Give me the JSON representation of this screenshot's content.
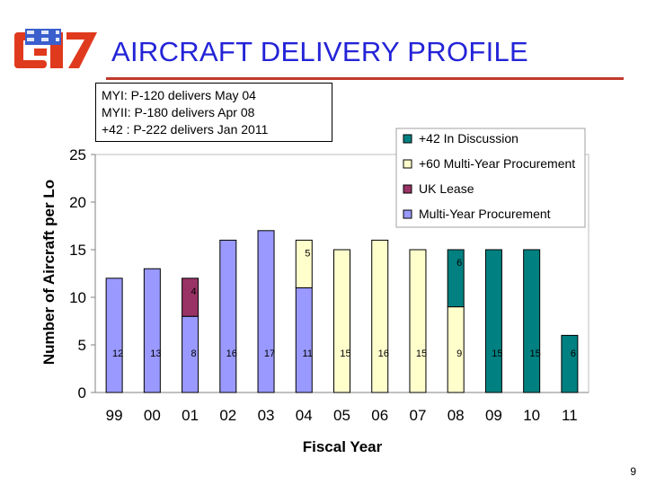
{
  "slide": {
    "title": "AIRCRAFT DELIVERY PROFILE",
    "notes": [
      "MYI:  P-120 delivers May 04",
      "MYII:  P-180 delivers Apr 08",
      "+42 :  P-222 delivers Jan 2011"
    ],
    "page_number": "9",
    "colors": {
      "title": "#2323d8",
      "rule": "#c0392b",
      "logo_red": "#e03a1e",
      "logo_blue": "#3a5fcd"
    }
  },
  "chart_data": {
    "type": "bar",
    "stacked": true,
    "xlabel": "Fiscal Year",
    "ylabel": "Number of Aircraft per Lo",
    "ylim": [
      0,
      25
    ],
    "yticks": [
      0,
      5,
      10,
      15,
      20,
      25
    ],
    "grid": false,
    "legend_position": "top-right",
    "categories": [
      "99",
      "00",
      "01",
      "02",
      "03",
      "04",
      "05",
      "06",
      "07",
      "08",
      "09",
      "10",
      "11"
    ],
    "series": [
      {
        "name": "Multi-Year Procurement",
        "color": "#9999ff",
        "values": [
          12,
          13,
          8,
          16,
          17,
          11,
          0,
          0,
          0,
          0,
          0,
          0,
          0
        ]
      },
      {
        "name": "UK Lease",
        "color": "#993366",
        "values": [
          0,
          0,
          4,
          0,
          0,
          0,
          0,
          0,
          0,
          0,
          0,
          0,
          0
        ]
      },
      {
        "name": "+60 Multi-Year Procurement",
        "color": "#ffffcc",
        "values": [
          0,
          0,
          0,
          0,
          0,
          5,
          15,
          16,
          15,
          9,
          0,
          0,
          0
        ]
      },
      {
        "name": "+42 In Discussion",
        "color": "#008080",
        "values": [
          0,
          0,
          0,
          0,
          0,
          0,
          0,
          0,
          0,
          6,
          15,
          15,
          6
        ]
      }
    ],
    "data_labels": [
      {
        "category": "99",
        "series": "Multi-Year Procurement",
        "text": "12"
      },
      {
        "category": "00",
        "series": "Multi-Year Procurement",
        "text": "13"
      },
      {
        "category": "01",
        "series": "Multi-Year Procurement",
        "text": "8"
      },
      {
        "category": "01",
        "series": "UK Lease",
        "text": "4"
      },
      {
        "category": "02",
        "series": "Multi-Year Procurement",
        "text": "16"
      },
      {
        "category": "03",
        "series": "Multi-Year Procurement",
        "text": "17"
      },
      {
        "category": "04",
        "series": "Multi-Year Procurement",
        "text": "11"
      },
      {
        "category": "04",
        "series": "+60 Multi-Year Procurement",
        "text": "5"
      },
      {
        "category": "05",
        "series": "+60 Multi-Year Procurement",
        "text": "15"
      },
      {
        "category": "06",
        "series": "+60 Multi-Year Procurement",
        "text": "16"
      },
      {
        "category": "07",
        "series": "+60 Multi-Year Procurement",
        "text": "15"
      },
      {
        "category": "08",
        "series": "+60 Multi-Year Procurement",
        "text": "9"
      },
      {
        "category": "08",
        "series": "+42 In Discussion",
        "text": "6"
      },
      {
        "category": "09",
        "series": "+42 In Discussion",
        "text": "15"
      },
      {
        "category": "10",
        "series": "+42 In Discussion",
        "text": "15"
      },
      {
        "category": "11",
        "series": "+42 In Discussion",
        "text": "6"
      }
    ],
    "legend_order": [
      "+42 In Discussion",
      "+60 Multi-Year Procurement",
      "UK Lease",
      "Multi-Year Procurement"
    ]
  }
}
